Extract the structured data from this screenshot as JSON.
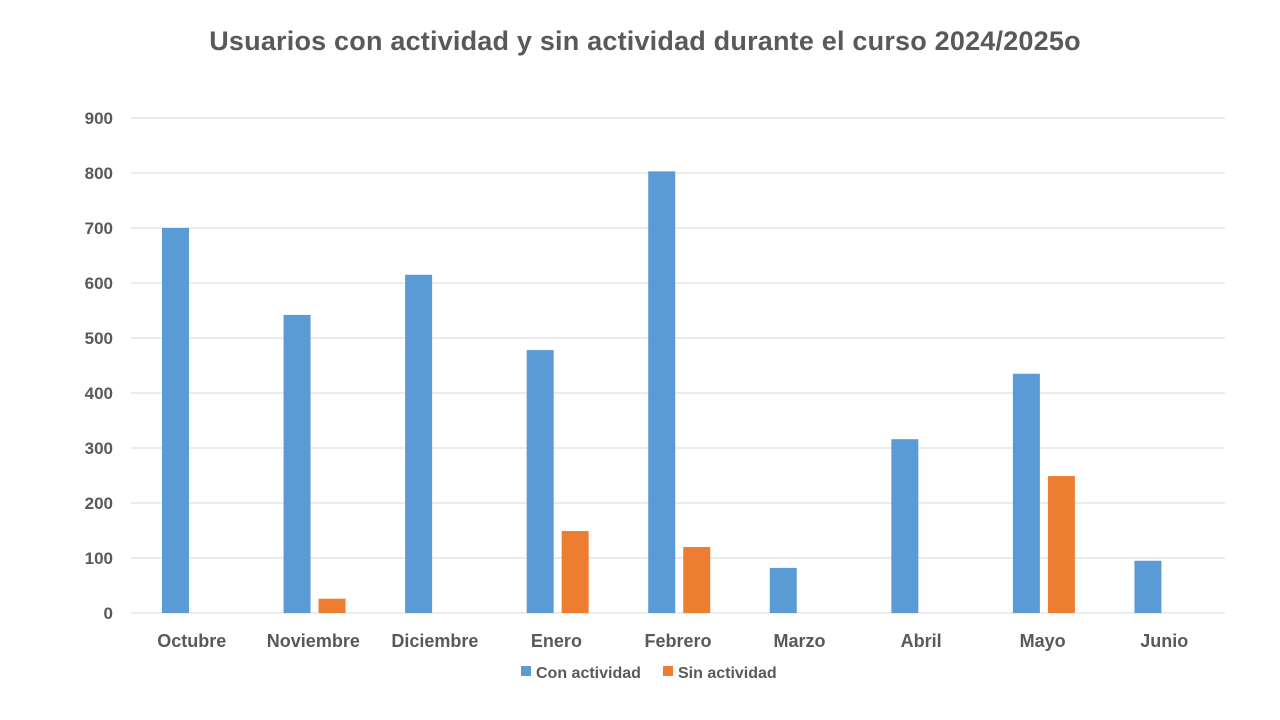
{
  "chart_data": {
    "type": "bar",
    "title": "Usuarios con actividad y sin actividad durante el curso 2024/2025o",
    "categories": [
      "Octubre",
      "Noviembre",
      "Diciembre",
      "Enero",
      "Febrero",
      "Marzo",
      "Abril",
      "Mayo",
      "Junio"
    ],
    "series": [
      {
        "name": "Con actividad",
        "color": "#5B9BD5",
        "values": [
          700,
          542,
          615,
          478,
          803,
          82,
          316,
          435,
          95
        ]
      },
      {
        "name": "Sin actividad",
        "color": "#ED7D31",
        "values": [
          0,
          26,
          0,
          149,
          120,
          0,
          0,
          249,
          0
        ]
      }
    ],
    "ylim": [
      0,
      900
    ],
    "yticks": [
      0,
      100,
      200,
      300,
      400,
      500,
      600,
      700,
      800,
      900
    ],
    "xlabel": "",
    "ylabel": "",
    "grid": true,
    "legend": "bottom"
  }
}
